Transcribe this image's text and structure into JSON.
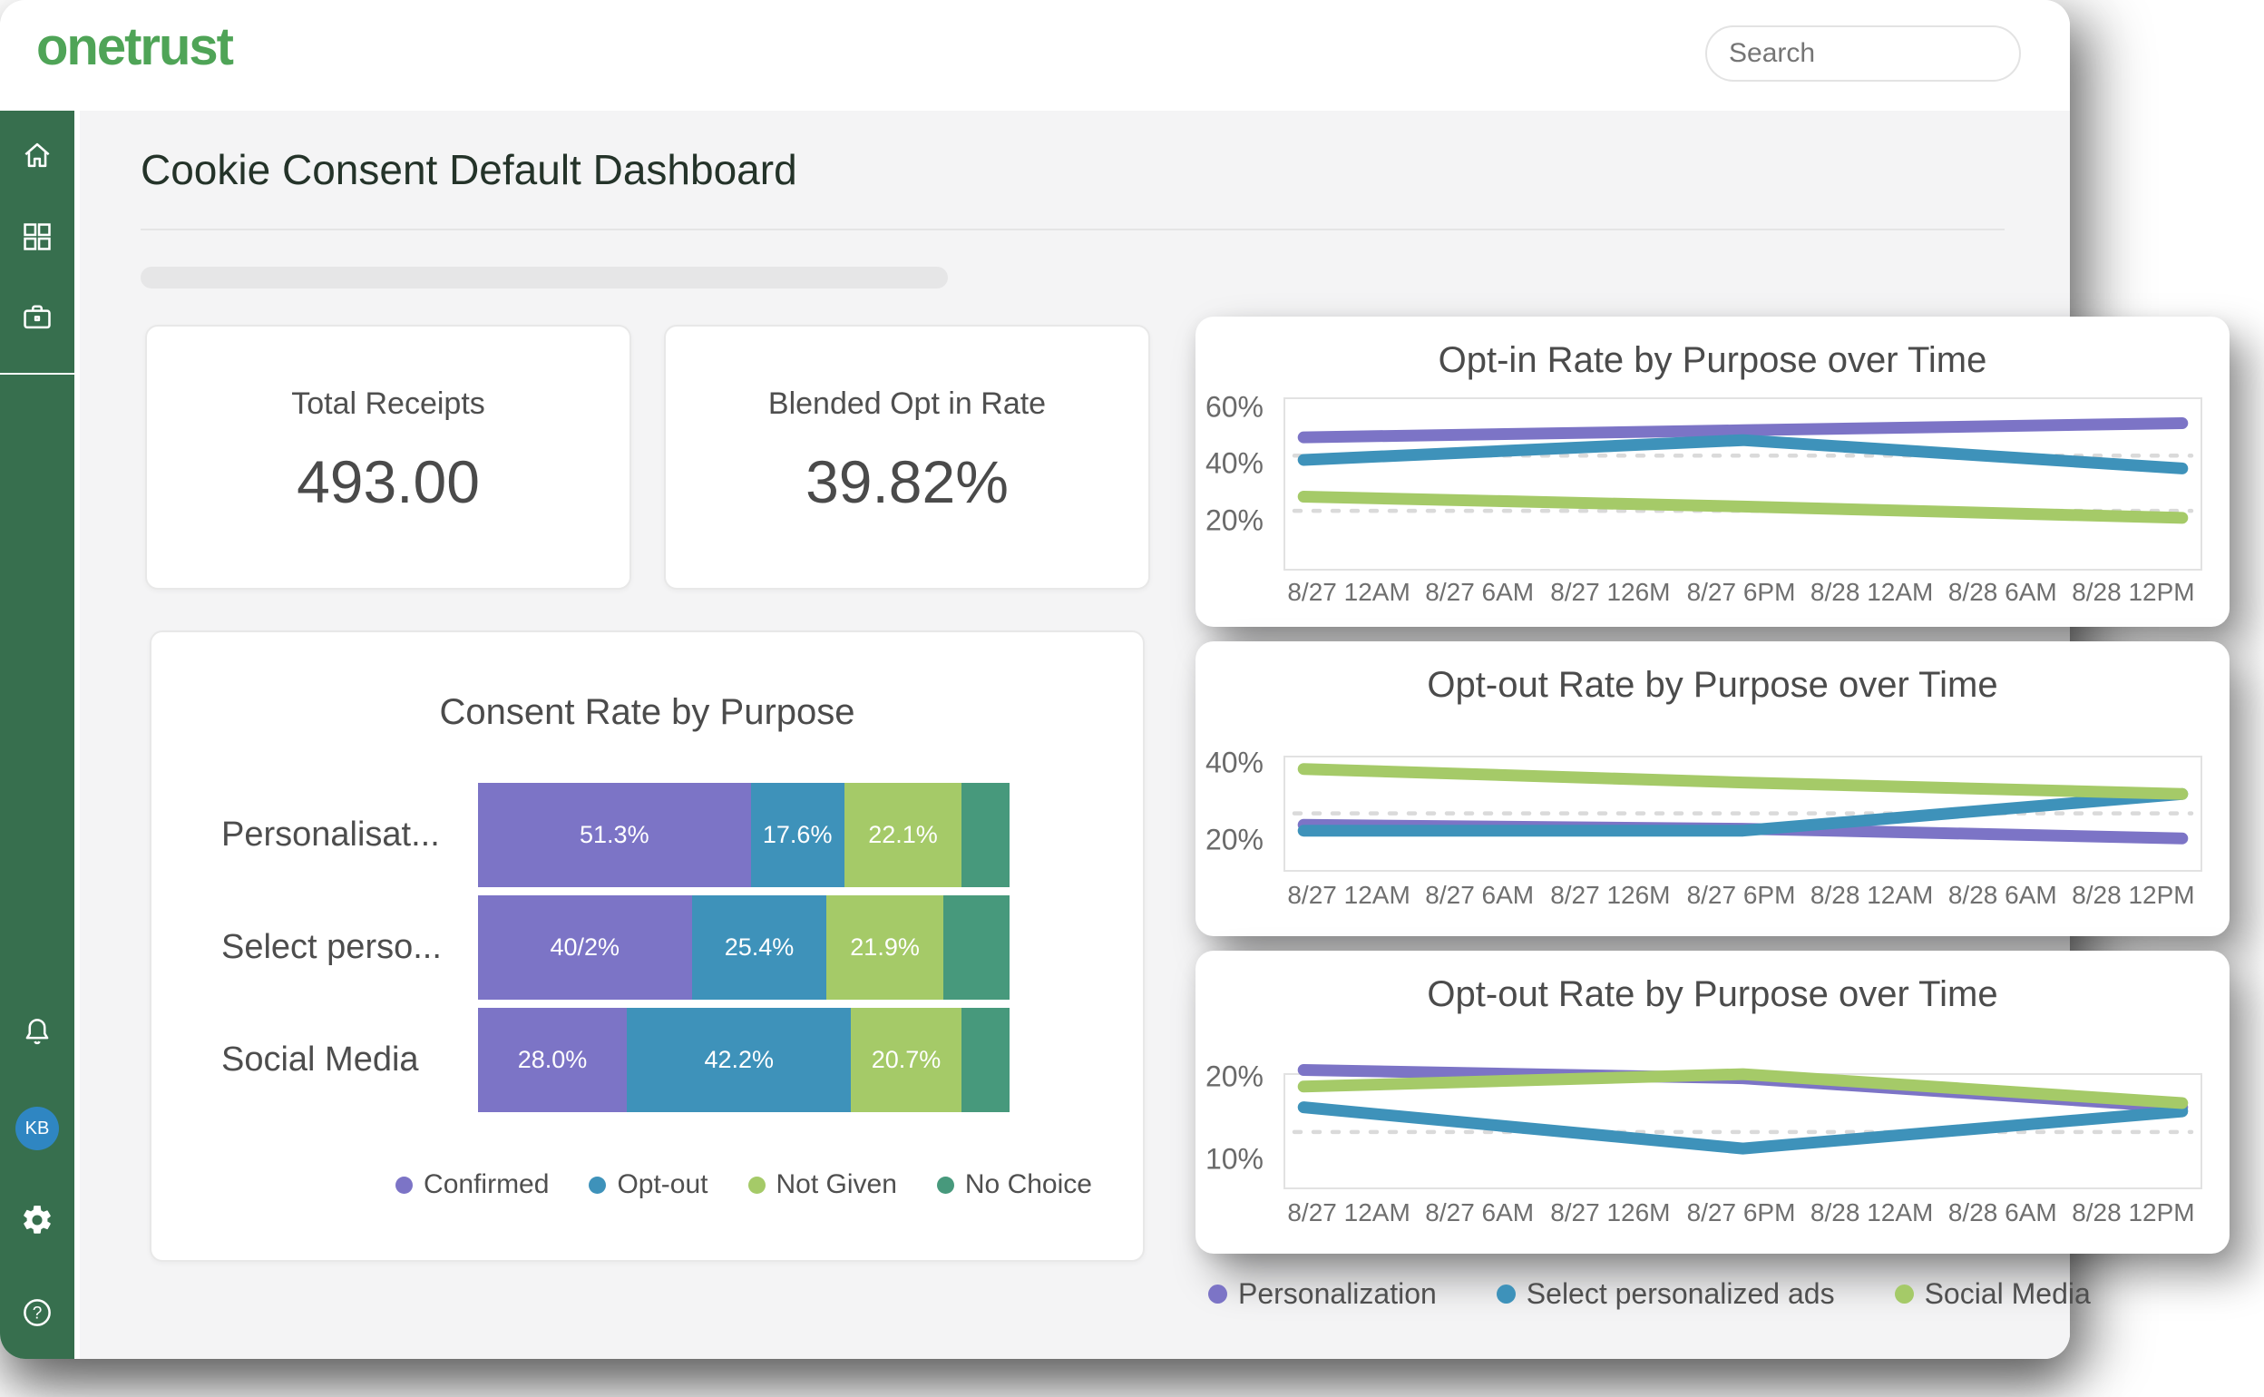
{
  "topbar": {
    "logo": "onetrust",
    "search_placeholder": "Search"
  },
  "page": {
    "title": "Cookie Consent Default Dashboard"
  },
  "sidebar": {
    "avatar_initials": "KB"
  },
  "stats": [
    {
      "label": "Total Receipts",
      "value": "493.00"
    },
    {
      "label": "Blended Opt in Rate",
      "value": "39.82%"
    }
  ],
  "colors": {
    "purple": "#7C74C6",
    "blue": "#3E92BA",
    "green": "#A5CA68",
    "teal": "#47997C",
    "sidebar_green": "#376F4E",
    "logo_green": "#4FA457",
    "avatar_blue": "#2F86C2"
  },
  "chart_data": [
    {
      "type": "bar",
      "orientation": "horizontal-stacked",
      "title": "Consent Rate by Purpose",
      "legend": [
        {
          "label": "Confirmed",
          "color": "#7C74C6"
        },
        {
          "label": "Opt-out",
          "color": "#3E92BA"
        },
        {
          "label": "Not Given",
          "color": "#A5CA68"
        },
        {
          "label": "No Choice",
          "color": "#47997C"
        }
      ],
      "rows": [
        {
          "label": "Personalisat...",
          "segments": [
            {
              "pct": 51.3,
              "text": "51.3%",
              "color": "#7C74C6"
            },
            {
              "pct": 17.6,
              "text": "17.6%",
              "color": "#3E92BA"
            },
            {
              "pct": 22.1,
              "text": "22.1%",
              "color": "#A5CA68"
            },
            {
              "pct": 9.0,
              "text": "",
              "color": "#47997C"
            }
          ]
        },
        {
          "label": "Select perso...",
          "segments": [
            {
              "pct": 40.2,
              "text": "40/2%",
              "color": "#7C74C6"
            },
            {
              "pct": 25.4,
              "text": "25.4%",
              "color": "#3E92BA"
            },
            {
              "pct": 21.9,
              "text": "21.9%",
              "color": "#A5CA68"
            },
            {
              "pct": 12.5,
              "text": "",
              "color": "#47997C"
            }
          ]
        },
        {
          "label": "Social Media",
          "segments": [
            {
              "pct": 28.0,
              "text": "28.0%",
              "color": "#7C74C6"
            },
            {
              "pct": 42.2,
              "text": "42.2%",
              "color": "#3E92BA"
            },
            {
              "pct": 20.7,
              "text": "20.7%",
              "color": "#A5CA68"
            },
            {
              "pct": 9.1,
              "text": "",
              "color": "#47997C"
            }
          ]
        }
      ]
    },
    {
      "type": "line",
      "title": "Opt-in Rate by Purpose over Time",
      "x_labels": [
        "8/27 12AM",
        "8/27 6AM",
        "8/27 126M",
        "8/27 6PM",
        "8/28 12AM",
        "8/28 6AM",
        "8/28 12PM"
      ],
      "points_x": [
        "8/27 12AM",
        "8/27 6PM",
        "8/28 12PM"
      ],
      "y_ticks": [
        {
          "label": "60%",
          "value": 60
        },
        {
          "label": "40%",
          "value": 40
        },
        {
          "label": "20%",
          "value": 20
        }
      ],
      "y_top": 63.5,
      "y_bottom": 3.5,
      "gridlines": [
        43.5,
        24
      ],
      "series": [
        {
          "name": "Personalization",
          "color": "#7C74C6",
          "values": [
            50,
            52.5,
            55
          ]
        },
        {
          "name": "Select personalized ads",
          "color": "#3E92BA",
          "values": [
            42,
            49,
            39
          ]
        },
        {
          "name": "Social Media",
          "color": "#A5CA68",
          "values": [
            29,
            25.5,
            21.5
          ]
        }
      ]
    },
    {
      "type": "line",
      "title": "Opt-out Rate by Purpose over Time",
      "x_labels": [
        "8/27 12AM",
        "8/27 6AM",
        "8/27 126M",
        "8/27 6PM",
        "8/28 12AM",
        "8/28 6AM",
        "8/28 12PM"
      ],
      "points_x": [
        "8/27 12AM",
        "8/27 6PM",
        "8/28 12PM"
      ],
      "y_ticks": [
        {
          "label": "40%",
          "value": 40
        },
        {
          "label": "20%",
          "value": 20
        }
      ],
      "y_top": 42,
      "y_bottom": 12.8,
      "gridlines": [
        27.5
      ],
      "series": [
        {
          "name": "Personalization",
          "color": "#7C74C6",
          "values": [
            24.5,
            23.5,
            21
          ]
        },
        {
          "name": "Select personalized ads",
          "color": "#3E92BA",
          "values": [
            23,
            23,
            32.5
          ]
        },
        {
          "name": "Social Media",
          "color": "#A5CA68",
          "values": [
            39,
            35.5,
            32.5
          ]
        }
      ]
    },
    {
      "type": "line",
      "title": "Opt-out Rate by Purpose over Time",
      "x_labels": [
        "8/27 12AM",
        "8/27 6AM",
        "8/27 126M",
        "8/27 6PM",
        "8/28 12AM",
        "8/28 6AM",
        "8/28 12PM"
      ],
      "points_x": [
        "8/27 12AM",
        "8/27 6PM",
        "8/28 12PM"
      ],
      "y_ticks": [
        {
          "label": "20%",
          "value": 20
        },
        {
          "label": "10%",
          "value": 10
        }
      ],
      "y_top": 20.4,
      "y_bottom": 6.8,
      "gridlines": [
        13.5
      ],
      "series": [
        {
          "name": "Personalization",
          "color": "#7C74C6",
          "values": [
            21,
            20,
            16.5
          ]
        },
        {
          "name": "Select personalized ads",
          "color": "#3E92BA",
          "values": [
            16.5,
            11.5,
            16
          ]
        },
        {
          "name": "Social Media",
          "color": "#A5CA68",
          "values": [
            19,
            20.5,
            17
          ]
        }
      ]
    }
  ],
  "line_legend": [
    {
      "label": "Personalization",
      "color": "#7C74C6"
    },
    {
      "label": "Select personalized ads",
      "color": "#3E92BA"
    },
    {
      "label": "Social Media",
      "color": "#A5CA68"
    }
  ]
}
